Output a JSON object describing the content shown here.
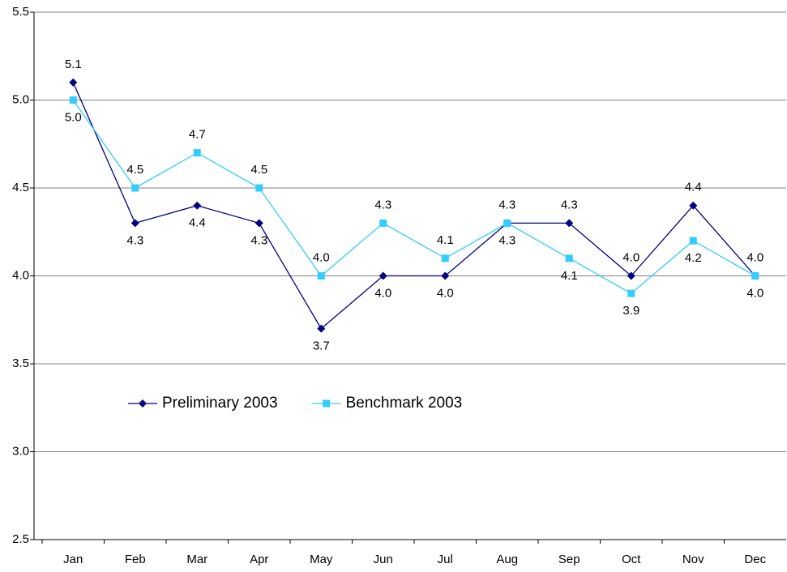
{
  "chart_data": {
    "type": "line",
    "categories": [
      "Jan",
      "Feb",
      "Mar",
      "Apr",
      "May",
      "Jun",
      "Jul",
      "Aug",
      "Sep",
      "Oct",
      "Nov",
      "Dec"
    ],
    "series": [
      {
        "name": "Preliminary 2003",
        "color": "#000080",
        "marker": "diamond",
        "values": [
          5.1,
          4.3,
          4.4,
          4.3,
          3.7,
          4.0,
          4.0,
          4.3,
          4.3,
          4.0,
          4.4,
          4.0
        ],
        "value_labels": [
          "5.1",
          "4.3",
          "4.4",
          "4.3",
          "3.7",
          "4.0",
          "4.0",
          "4.3",
          "4.3",
          "4.0",
          "4.4",
          "4.0"
        ]
      },
      {
        "name": "Benchmark 2003",
        "color": "#33ccff",
        "marker": "square",
        "values": [
          5.0,
          4.5,
          4.7,
          4.5,
          4.0,
          4.3,
          4.1,
          4.3,
          4.1,
          3.9,
          4.2,
          4.0
        ],
        "value_labels": [
          "5.0",
          "4.5",
          "4.7",
          "4.5",
          "4.0",
          "4.3",
          "4.1",
          "4.3",
          "4.1",
          "3.9",
          "4.2",
          "4.0"
        ]
      }
    ],
    "ylim": [
      2.5,
      5.5
    ],
    "yticks": [
      2.5,
      {
        "value": 3,
        "label": "3.0"
      },
      3.5,
      {
        "value": 4,
        "label": "4.0"
      },
      4.5,
      {
        "value": 5,
        "label": "5.0"
      },
      5.5
    ],
    "grid": true
  }
}
